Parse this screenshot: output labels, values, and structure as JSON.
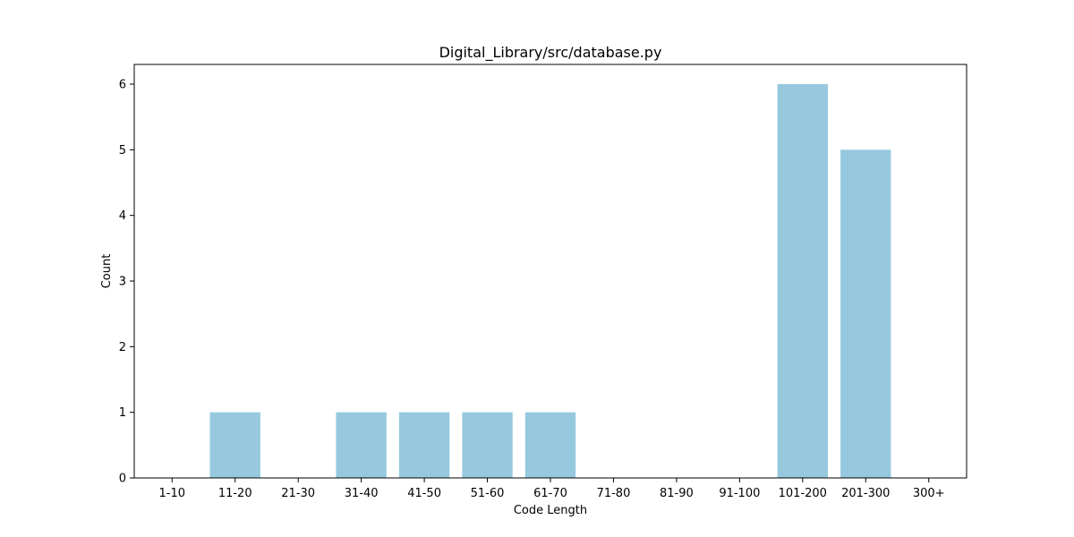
{
  "chart_data": {
    "type": "bar",
    "title": "Digital_Library/src/database.py",
    "xlabel": "Code Length",
    "ylabel": "Count",
    "categories": [
      "1-10",
      "11-20",
      "21-30",
      "31-40",
      "41-50",
      "51-60",
      "61-70",
      "71-80",
      "81-90",
      "91-100",
      "101-200",
      "201-300",
      "300+"
    ],
    "values": [
      0,
      1,
      0,
      1,
      1,
      1,
      1,
      0,
      0,
      0,
      6,
      5,
      0
    ],
    "ylim": [
      0,
      6.3
    ],
    "yticks": [
      0,
      1,
      2,
      3,
      4,
      5,
      6
    ],
    "bar_color": "#96c9de",
    "grid": false,
    "legend": "none"
  }
}
